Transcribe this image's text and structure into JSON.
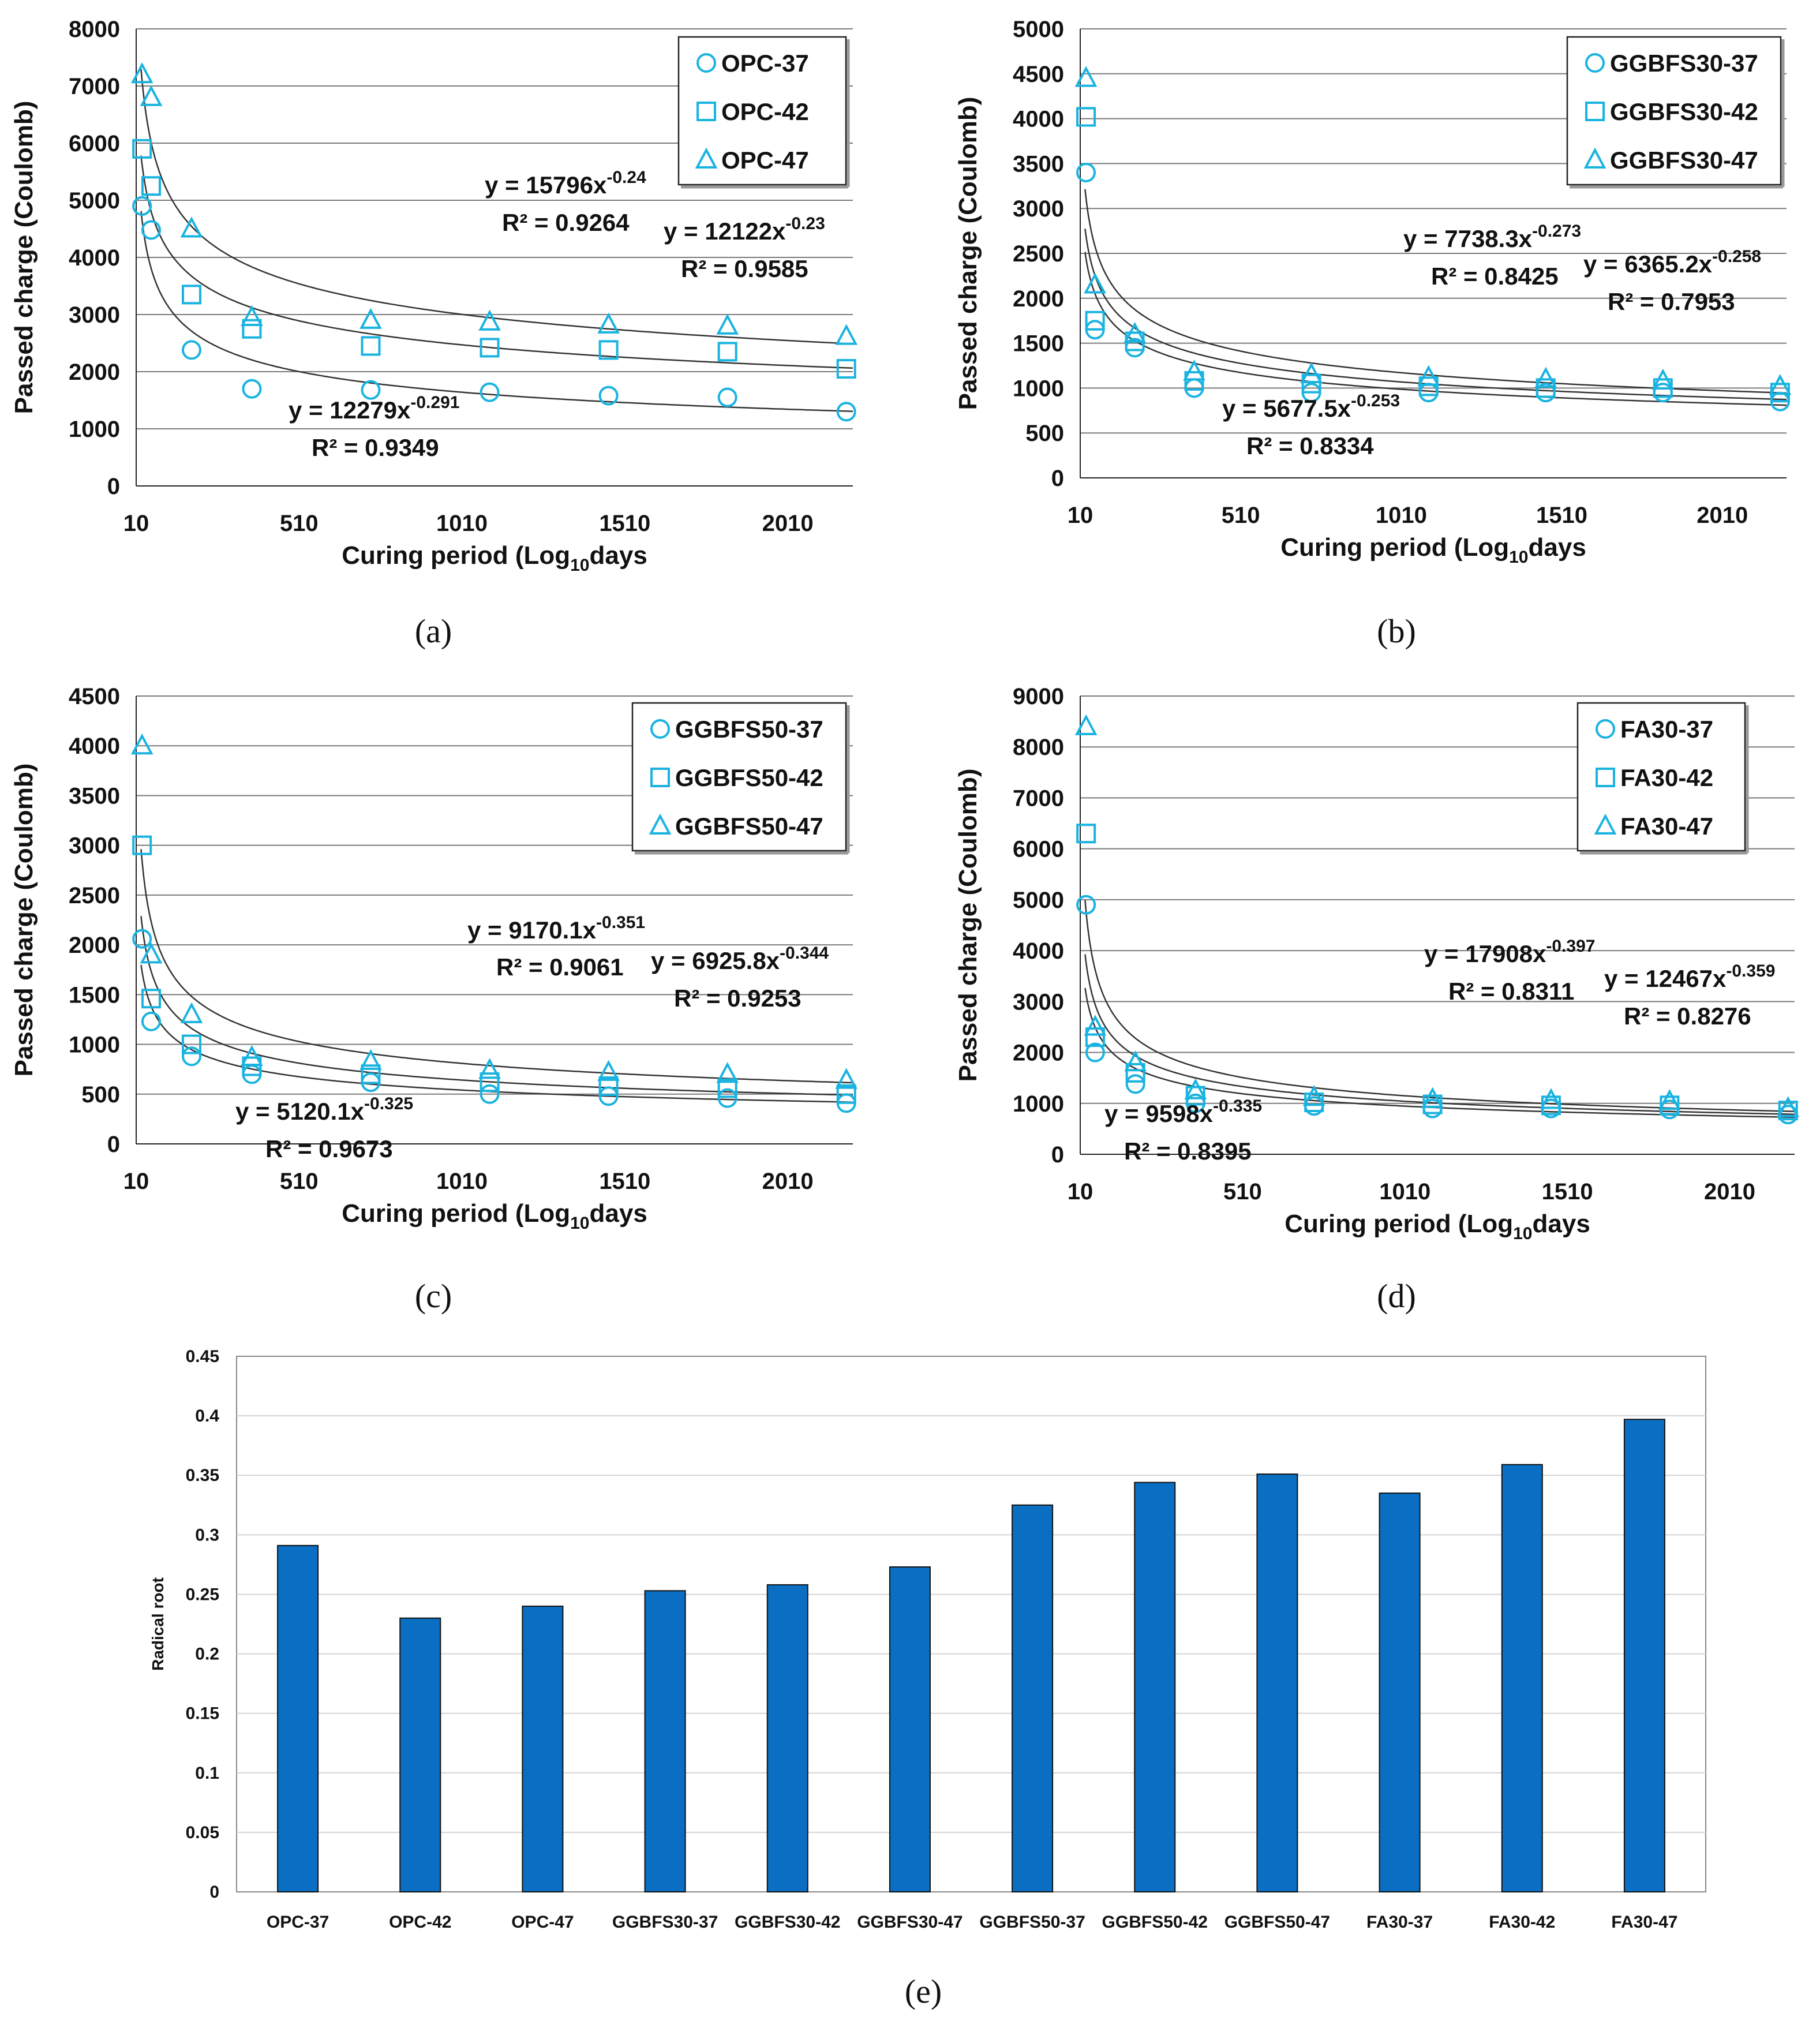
{
  "chart_data": [
    {
      "panel": "a",
      "type": "scatter",
      "xlabel": "Curing period (Log",
      "xlabel_sub": "10",
      "xlabel_end": "days",
      "ylabel": "Passed charge (Coulomb)",
      "xlim": [
        10,
        2210
      ],
      "ylim": [
        0,
        8000
      ],
      "xticks": [
        10,
        510,
        1010,
        1510,
        2010
      ],
      "yticks": [
        0,
        1000,
        2000,
        3000,
        4000,
        5000,
        6000,
        7000,
        8000
      ],
      "grid": "horizontal",
      "legend_position": "top-right",
      "series": [
        {
          "name": "OPC-37",
          "marker": "circle",
          "x": [
            28,
            56,
            180,
            365,
            730,
            1095,
            1460,
            1825,
            2190
          ],
          "y": [
            4900,
            4480,
            2380,
            1700,
            1680,
            1640,
            1580,
            1550,
            1300
          ],
          "fit_a": 12279,
          "fit_b": -0.291
        },
        {
          "name": "OPC-42",
          "marker": "square",
          "x": [
            28,
            56,
            180,
            365,
            730,
            1095,
            1460,
            1825,
            2190
          ],
          "y": [
            5900,
            5250,
            3350,
            2750,
            2450,
            2420,
            2380,
            2350,
            2050
          ],
          "fit_a": 12122,
          "fit_b": -0.23
        },
        {
          "name": "OPC-47",
          "marker": "triangle",
          "x": [
            28,
            56,
            180,
            365,
            730,
            1095,
            1460,
            1825,
            2190
          ],
          "y": [
            7200,
            6800,
            4500,
            2950,
            2900,
            2870,
            2820,
            2800,
            2620
          ],
          "fit_a": 15796,
          "fit_b": -0.24
        }
      ],
      "annotations": [
        {
          "eq": "y = 15796x",
          "exp": "-0.24",
          "r2": "R² = 0.9264"
        },
        {
          "eq": "y = 12122x",
          "exp": "-0.23",
          "r2": "R² = 0.9585"
        },
        {
          "eq": "y = 12279x",
          "exp": "-0.291",
          "r2": "R² = 0.9349"
        }
      ]
    },
    {
      "panel": "b",
      "type": "scatter",
      "xlabel": "Curing period (Log",
      "xlabel_sub": "10",
      "xlabel_end": "days",
      "ylabel": "Passed charge (Coulomb)",
      "xlim": [
        10,
        2210
      ],
      "ylim": [
        0,
        5000
      ],
      "xticks": [
        10,
        510,
        1010,
        1510,
        2010
      ],
      "yticks": [
        0,
        500,
        1000,
        1500,
        2000,
        2500,
        3000,
        3500,
        4000,
        4500,
        5000
      ],
      "grid": "horizontal",
      "legend_position": "top-right",
      "series": [
        {
          "name": "GGBFS30-37",
          "marker": "circle",
          "x": [
            28,
            56,
            180,
            365,
            730,
            1095,
            1460,
            1825,
            2190
          ],
          "y": [
            3400,
            1650,
            1450,
            1000,
            950,
            950,
            950,
            950,
            850
          ],
          "fit_a": 5677.5,
          "fit_b": -0.253
        },
        {
          "name": "GGBFS30-42",
          "marker": "square",
          "x": [
            28,
            56,
            180,
            365,
            730,
            1095,
            1460,
            1825,
            2190
          ],
          "y": [
            4020,
            1750,
            1520,
            1080,
            1050,
            1020,
            1000,
            1000,
            950
          ],
          "fit_a": 6365.2,
          "fit_b": -0.258
        },
        {
          "name": "GGBFS30-47",
          "marker": "triangle",
          "x": [
            28,
            56,
            180,
            365,
            730,
            1095,
            1460,
            1825,
            2190
          ],
          "y": [
            4450,
            2150,
            1600,
            1180,
            1150,
            1120,
            1100,
            1080,
            1020
          ],
          "fit_a": 7738.3,
          "fit_b": -0.273
        }
      ],
      "annotations": [
        {
          "eq": "y = 7738.3x",
          "exp": "-0.273",
          "r2": "R² = 0.8425"
        },
        {
          "eq": "y = 6365.2x",
          "exp": "-0.258",
          "r2": "R² = 0.7953"
        },
        {
          "eq": "y = 5677.5x",
          "exp": "-0.253",
          "r2": "R² = 0.8334"
        }
      ]
    },
    {
      "panel": "c",
      "type": "scatter",
      "xlabel": "Curing period (Log",
      "xlabel_sub": "10",
      "xlabel_end": "days",
      "ylabel": "Passed charge (Coulomb)",
      "xlim": [
        10,
        2210
      ],
      "ylim": [
        0,
        4500
      ],
      "xticks": [
        10,
        510,
        1010,
        1510,
        2010
      ],
      "yticks": [
        0,
        500,
        1000,
        1500,
        2000,
        2500,
        3000,
        3500,
        4000,
        4500
      ],
      "grid": "horizontal",
      "legend_position": "top-right",
      "series": [
        {
          "name": "GGBFS50-37",
          "marker": "circle",
          "x": [
            28,
            56,
            180,
            365,
            730,
            1095,
            1460,
            1825,
            2190
          ],
          "y": [
            2060,
            1230,
            880,
            700,
            620,
            500,
            480,
            460,
            410
          ],
          "fit_a": 5120.1,
          "fit_b": -0.325
        },
        {
          "name": "GGBFS50-42",
          "marker": "square",
          "x": [
            28,
            56,
            180,
            365,
            730,
            1095,
            1460,
            1825,
            2190
          ],
          "y": [
            3000,
            1460,
            1000,
            780,
            700,
            620,
            580,
            560,
            500
          ],
          "fit_a": 6925.8,
          "fit_b": -0.344
        },
        {
          "name": "GGBFS50-47",
          "marker": "triangle",
          "x": [
            28,
            56,
            180,
            365,
            730,
            1095,
            1460,
            1825,
            2190
          ],
          "y": [
            4000,
            1900,
            1300,
            870,
            830,
            740,
            720,
            700,
            640
          ],
          "fit_a": 9170.1,
          "fit_b": -0.351
        }
      ],
      "annotations": [
        {
          "eq": "y = 9170.1x",
          "exp": "-0.351",
          "r2": "R² = 0.9061"
        },
        {
          "eq": "y = 6925.8x",
          "exp": "-0.344",
          "r2": "R² = 0.9253"
        },
        {
          "eq": "y = 5120.1x",
          "exp": "-0.325",
          "r2": "R² = 0.9673"
        }
      ]
    },
    {
      "panel": "d",
      "type": "scatter",
      "xlabel": "Curing period (Log",
      "xlabel_sub": "10",
      "xlabel_end": "days",
      "ylabel": "Passed charge (Coulomb)",
      "xlim": [
        10,
        2210
      ],
      "ylim": [
        0,
        9000
      ],
      "xticks": [
        10,
        510,
        1010,
        1510,
        2010
      ],
      "yticks": [
        0,
        1000,
        2000,
        3000,
        4000,
        5000,
        6000,
        7000,
        8000,
        9000
      ],
      "grid": "horizontal",
      "legend_position": "top-right",
      "series": [
        {
          "name": "FA30-37",
          "marker": "circle",
          "x": [
            28,
            56,
            180,
            365,
            730,
            1095,
            1460,
            1825,
            2190
          ],
          "y": [
            4900,
            2000,
            1380,
            1000,
            950,
            900,
            900,
            880,
            780
          ],
          "fit_a": 9598,
          "fit_b": -0.335
        },
        {
          "name": "FA30-42",
          "marker": "square",
          "x": [
            28,
            56,
            180,
            365,
            730,
            1095,
            1460,
            1825,
            2190
          ],
          "y": [
            6300,
            2300,
            1600,
            1150,
            1020,
            980,
            960,
            960,
            860
          ],
          "fit_a": 12467,
          "fit_b": -0.359
        },
        {
          "name": "FA30-47",
          "marker": "triangle",
          "x": [
            28,
            56,
            180,
            365,
            730,
            1095,
            1460,
            1825,
            2190
          ],
          "y": [
            8400,
            2500,
            1800,
            1250,
            1120,
            1080,
            1060,
            1040,
            900
          ],
          "fit_a": 17908,
          "fit_b": -0.397
        }
      ],
      "annotations": [
        {
          "eq": "y = 17908x",
          "exp": "-0.397",
          "r2": "R² = 0.8311"
        },
        {
          "eq": "y = 12467x",
          "exp": "-0.359",
          "r2": "R² = 0.8276"
        },
        {
          "eq": "y = 9598x",
          "exp": "-0.335",
          "r2": "R² = 0.8395"
        }
      ]
    },
    {
      "panel": "e",
      "type": "bar",
      "ylabel": "Radical root",
      "ylim": [
        0,
        0.45
      ],
      "yticks": [
        "0",
        "0.05",
        "0.1",
        "0.15",
        "0.2",
        "0.25",
        "0.3",
        "0.35",
        "0.4",
        "0.45"
      ],
      "grid": "horizontal",
      "categories": [
        "OPC-37",
        "OPC-42",
        "OPC-47",
        "GGBFS30-37",
        "GGBFS30-42",
        "GGBFS30-47",
        "GGBFS50-37",
        "GGBFS50-42",
        "GGBFS50-47",
        "FA30-37",
        "FA30-42",
        "FA30-47"
      ],
      "values": [
        0.291,
        0.23,
        0.24,
        0.253,
        0.258,
        0.273,
        0.325,
        0.344,
        0.351,
        0.335,
        0.359,
        0.397
      ]
    }
  ],
  "panel_labels": [
    "(a)",
    "(b)",
    "(c)",
    "(d)",
    "(e)"
  ],
  "colors": {
    "marker": "#1ab3e0",
    "bar": "#0a6fc2",
    "fit": "#333333",
    "grid": "#7a7a7a",
    "bar_grid": "#d4d4d4"
  }
}
